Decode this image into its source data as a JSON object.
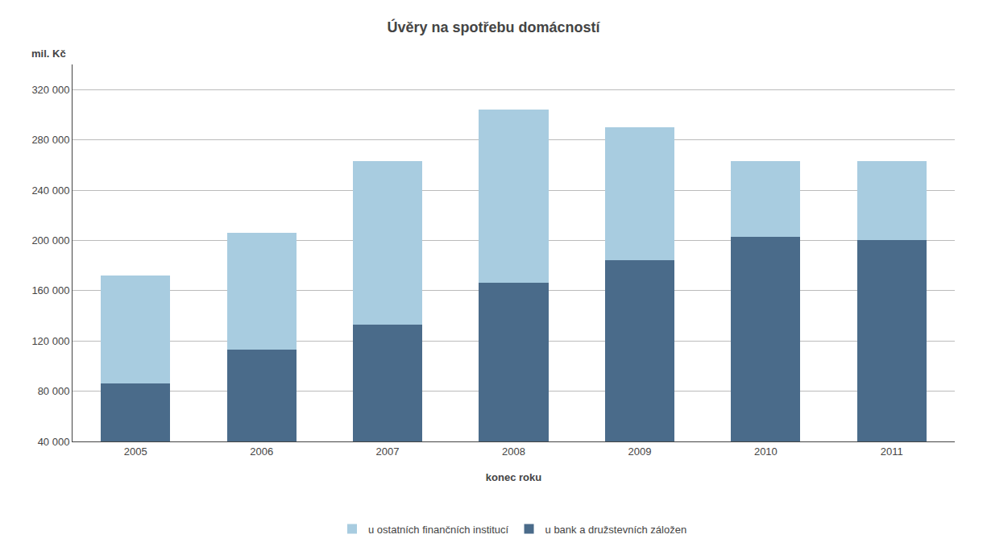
{
  "chart_data": {
    "type": "bar",
    "stacked": true,
    "title": "Úvěry na spotřebu domácností",
    "ylabel": "mil. Kč",
    "xlabel": "konec roku",
    "categories": [
      "2005",
      "2006",
      "2007",
      "2008",
      "2009",
      "2010",
      "2011"
    ],
    "series": [
      {
        "name": "u bank a družstevních záložen",
        "color": "#4a6b8a",
        "values": [
          86000,
          113000,
          133000,
          166000,
          184000,
          203000,
          200000
        ]
      },
      {
        "name": "u ostatních finančních institucí",
        "color": "#a8cce0",
        "values": [
          86000,
          93000,
          130000,
          138000,
          106000,
          60000,
          63000
        ]
      }
    ],
    "ylim": [
      40000,
      340000
    ],
    "yticks": [
      {
        "value": 40000,
        "label": "40 000"
      },
      {
        "value": 80000,
        "label": "80 000"
      },
      {
        "value": 120000,
        "label": "120 000"
      },
      {
        "value": 160000,
        "label": "160 000"
      },
      {
        "value": 200000,
        "label": "200 000"
      },
      {
        "value": 240000,
        "label": "240 000"
      },
      {
        "value": 280000,
        "label": "280 000"
      },
      {
        "value": 320000,
        "label": "320 000"
      }
    ],
    "grid": true,
    "legend": "bottom"
  }
}
